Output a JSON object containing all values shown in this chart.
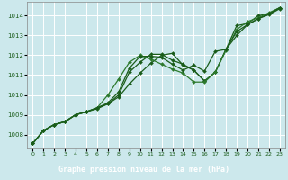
{
  "title": "Graphe pression niveau de la mer (hPa)",
  "xlabel_hours": [
    0,
    1,
    2,
    3,
    4,
    5,
    6,
    7,
    8,
    9,
    10,
    11,
    12,
    13,
    14,
    15,
    16,
    17,
    18,
    19,
    20,
    21,
    22,
    23
  ],
  "ylim": [
    1007.3,
    1014.7
  ],
  "yticks": [
    1008,
    1009,
    1010,
    1011,
    1012,
    1013,
    1014
  ],
  "bg_color": "#cce8ec",
  "grid_color": "#ffffff",
  "line_color_dark": "#1a5c1a",
  "line_color_med": "#2d7a2d",
  "title_bg": "#1a5c1a",
  "title_fg": "#ffffff",
  "series1": [
    1007.55,
    1008.2,
    1008.5,
    1008.65,
    1009.0,
    1009.15,
    1009.35,
    1009.55,
    1010.0,
    1011.15,
    1011.65,
    1012.05,
    1012.05,
    1011.75,
    1011.55,
    1011.25,
    1010.7,
    1011.15,
    1012.3,
    1013.0,
    1013.55,
    1013.85,
    1014.05,
    1014.35
  ],
  "series2": [
    1007.55,
    1008.2,
    1008.5,
    1008.65,
    1009.0,
    1009.15,
    1009.3,
    1009.55,
    1009.9,
    1010.55,
    1011.1,
    1011.6,
    1012.0,
    1012.1,
    1011.5,
    1011.25,
    1010.7,
    1011.15,
    1012.3,
    1013.5,
    1013.6,
    1014.0,
    1014.1,
    1014.4
  ],
  "series3": [
    1007.55,
    1008.2,
    1008.5,
    1008.65,
    1009.0,
    1009.15,
    1009.35,
    1010.0,
    1010.8,
    1011.65,
    1012.0,
    1011.8,
    1011.55,
    1011.3,
    1011.1,
    1010.65,
    1010.65,
    1011.15,
    1012.25,
    1013.3,
    1013.7,
    1013.9,
    1014.15,
    1014.4
  ],
  "series4": [
    1007.55,
    1008.2,
    1008.5,
    1008.65,
    1009.0,
    1009.15,
    1009.35,
    1009.6,
    1010.15,
    1011.35,
    1011.95,
    1011.95,
    1011.9,
    1011.55,
    1011.25,
    1011.5,
    1011.2,
    1012.2,
    1012.3,
    1013.2,
    1013.55,
    1013.85,
    1014.1,
    1014.4
  ]
}
